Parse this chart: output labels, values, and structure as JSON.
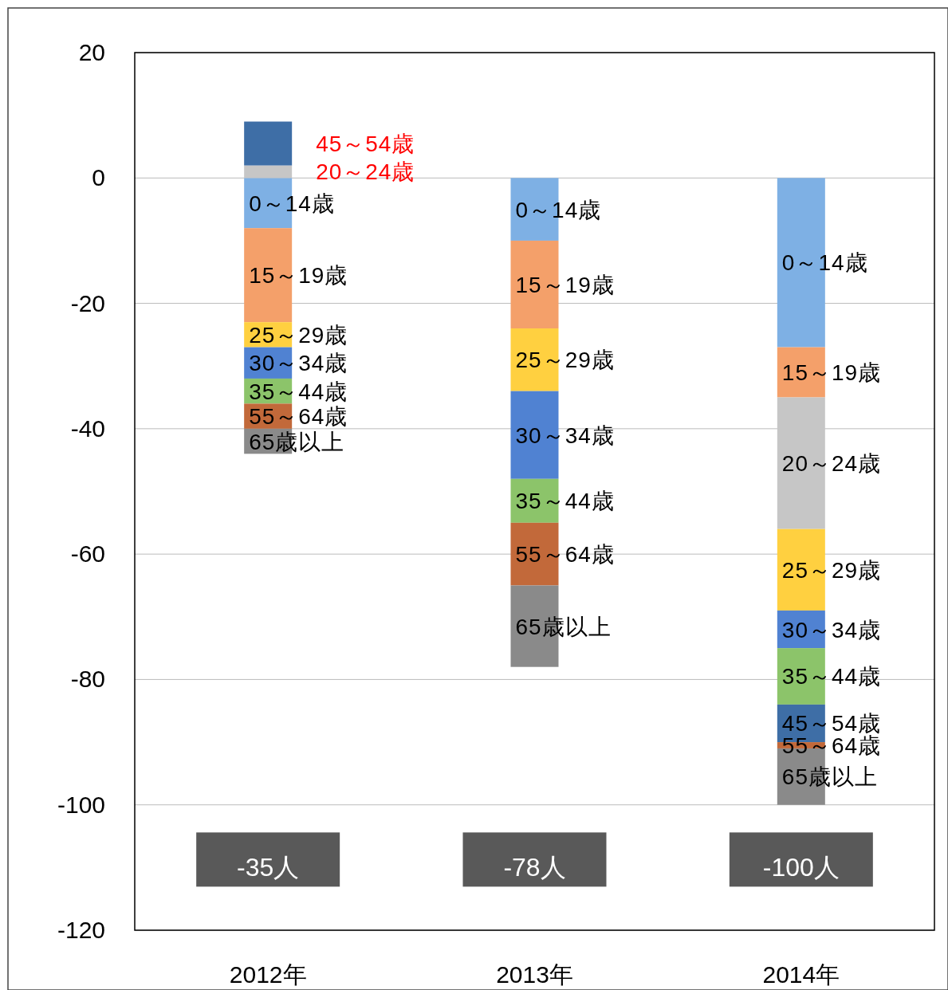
{
  "chart_data": {
    "type": "bar",
    "stacked": true,
    "categories": [
      "2012年",
      "2013年",
      "2014年"
    ],
    "series": [
      {
        "name": "0～14歳",
        "color": "#7eb0e4",
        "values": [
          -8,
          -10,
          -27
        ]
      },
      {
        "name": "15～19歳",
        "color": "#f4a06a",
        "values": [
          -15,
          -14,
          -8
        ]
      },
      {
        "name": "20～24歳",
        "color": "#c6c6c6",
        "values": [
          2,
          null,
          -21
        ]
      },
      {
        "name": "25～29歳",
        "color": "#ffd040",
        "values": [
          -4,
          -10,
          -13
        ]
      },
      {
        "name": "30～34歳",
        "color": "#5082d2",
        "values": [
          -5,
          -14,
          -6
        ]
      },
      {
        "name": "35～44歳",
        "color": "#8cc46a",
        "values": [
          -4,
          -7,
          -9
        ]
      },
      {
        "name": "45～54歳",
        "color": "#3e6ea6",
        "values": [
          7,
          null,
          -6
        ]
      },
      {
        "name": "55～64歳",
        "color": "#c2693a",
        "values": [
          -4,
          -10,
          -1
        ]
      },
      {
        "name": "65歳以上",
        "color": "#8a8a8a",
        "values": [
          -4,
          -13,
          -9
        ]
      }
    ],
    "ylim": [
      -120,
      20
    ],
    "yticks": [
      20,
      0,
      -20,
      -40,
      -60,
      -80,
      -100,
      -120
    ],
    "grid": "y",
    "annotations": [
      "-35人",
      "-78人",
      "-100人"
    ]
  }
}
